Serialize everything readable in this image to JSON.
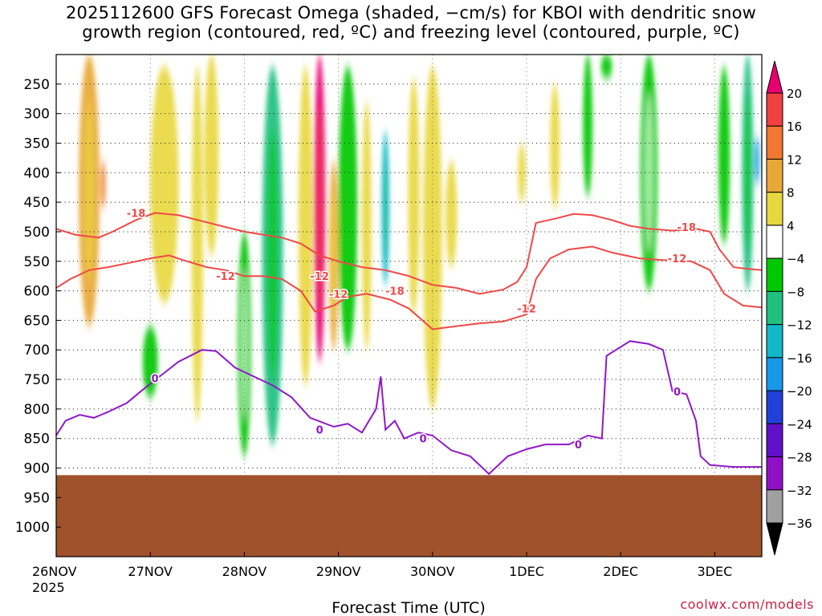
{
  "title": {
    "line1": "2025112600 GFS Forecast Omega (shaded, −cm/s) for KBOI with dendritic snow",
    "line2": "growth region (contoured, red, ºC) and freezing level (contoured, purple, ºC)"
  },
  "credit": "coolwx.com/models",
  "chart_data": {
    "type": "heatmap",
    "xlabel": "Forecast Time (UTC)",
    "x_tick_labels": [
      "26NOV\n2025",
      "27NOV",
      "28NOV",
      "29NOV",
      "30NOV",
      "1DEC",
      "2DEC",
      "3DEC"
    ],
    "x_range_days": [
      0,
      7.5
    ],
    "y_tick_labels": [
      "250",
      "300",
      "350",
      "400",
      "450",
      "500",
      "550",
      "600",
      "650",
      "700",
      "750",
      "800",
      "850",
      "900",
      "950",
      "1000"
    ],
    "y_ticks_hpa": [
      250,
      300,
      350,
      400,
      450,
      500,
      550,
      600,
      650,
      700,
      750,
      800,
      850,
      900,
      950,
      1000
    ],
    "y_range_hpa": [
      200,
      1050
    ],
    "ground_level_hpa": 912,
    "ground_color": "#a0522d",
    "grid": true,
    "colorbar": {
      "tick_labels": [
        "20",
        "16",
        "12",
        "8",
        "4",
        "−4",
        "−8",
        "−12",
        "−16",
        "−20",
        "−24",
        "−28",
        "−32",
        "−36"
      ],
      "bins": [
        {
          "color": "#e8006e",
          "min": 20
        },
        {
          "color": "#f04040",
          "min": 16,
          "max": 20
        },
        {
          "color": "#f07830",
          "min": 12,
          "max": 16
        },
        {
          "color": "#e8a838",
          "min": 8,
          "max": 12
        },
        {
          "color": "#e8d840",
          "min": 4,
          "max": 8
        },
        {
          "color": "#ffffff",
          "min": -4,
          "max": 4
        },
        {
          "color": "#00c800",
          "min": -8,
          "max": -4
        },
        {
          "color": "#20c080",
          "min": -12,
          "max": -8
        },
        {
          "color": "#10b8c8",
          "min": -16,
          "max": -12
        },
        {
          "color": "#1898e8",
          "min": -20,
          "max": -16
        },
        {
          "color": "#2040d8",
          "min": -24,
          "max": -20
        },
        {
          "color": "#6010c8",
          "min": -28,
          "max": -24
        },
        {
          "color": "#9010c8",
          "min": -32,
          "max": -28
        },
        {
          "color": "#a0a0a0",
          "min": -36,
          "max": -32
        },
        {
          "color": "#000000",
          "max": -36
        }
      ]
    },
    "omega_features": [
      {
        "day": 6.3,
        "p_top": 200,
        "p_bot": 600,
        "value": -8,
        "width_days": 0.18
      },
      {
        "day": 3.8,
        "p_top": 240,
        "p_bot": 640,
        "value": 4,
        "width_days": 0.12
      },
      {
        "day": 7.35,
        "p_top": 200,
        "p_bot": 600,
        "value": -10,
        "width_days": 0.12
      },
      {
        "day": 7.1,
        "p_top": 220,
        "p_bot": 520,
        "value": -6,
        "width_days": 0.12
      },
      {
        "day": 5.65,
        "p_top": 200,
        "p_bot": 440,
        "value": -6,
        "width_days": 0.1
      },
      {
        "day": 0.35,
        "p_top": 200,
        "p_bot": 660,
        "value": 8,
        "width_days": 0.22
      },
      {
        "day": 1.15,
        "p_top": 220,
        "p_bot": 620,
        "value": 6,
        "width_days": 0.3
      },
      {
        "day": 1.65,
        "p_top": 200,
        "p_bot": 540,
        "value": 6,
        "width_days": 0.15
      },
      {
        "day": 1.5,
        "p_top": 220,
        "p_bot": 820,
        "value": 5,
        "width_days": 0.12
      },
      {
        "day": 2.3,
        "p_top": 220,
        "p_bot": 860,
        "value": -10,
        "width_days": 0.22
      },
      {
        "day": 2.0,
        "p_top": 500,
        "p_bot": 880,
        "value": -8,
        "width_days": 0.14
      },
      {
        "day": 2.65,
        "p_top": 220,
        "p_bot": 760,
        "value": 5,
        "width_days": 0.15
      },
      {
        "day": 2.8,
        "p_top": 200,
        "p_bot": 720,
        "value": 22,
        "width_days": 0.12
      },
      {
        "day": 2.95,
        "p_top": 380,
        "p_bot": 700,
        "value": 10,
        "width_days": 0.1
      },
      {
        "day": 3.1,
        "p_top": 220,
        "p_bot": 700,
        "value": -6,
        "width_days": 0.2
      },
      {
        "day": 3.3,
        "p_top": 280,
        "p_bot": 700,
        "value": 5,
        "width_days": 0.1
      },
      {
        "day": 4.0,
        "p_top": 220,
        "p_bot": 800,
        "value": 5,
        "width_days": 0.2
      },
      {
        "day": 4.2,
        "p_top": 380,
        "p_bot": 560,
        "value": 6,
        "width_days": 0.12
      },
      {
        "day": 0.5,
        "p_top": 380,
        "p_bot": 460,
        "value": 14,
        "width_days": 0.05
      },
      {
        "day": 5.3,
        "p_top": 250,
        "p_bot": 460,
        "value": 5,
        "width_days": 0.1
      },
      {
        "day": 4.95,
        "p_top": 350,
        "p_bot": 450,
        "value": 6,
        "width_days": 0.08
      },
      {
        "day": 7.45,
        "p_top": 340,
        "p_bot": 420,
        "value": -18,
        "width_days": 0.05
      },
      {
        "day": 3.5,
        "p_top": 330,
        "p_bot": 590,
        "value": -14,
        "width_days": 0.08
      },
      {
        "day": 1.0,
        "p_top": 660,
        "p_bot": 780,
        "value": -6,
        "width_days": 0.16
      },
      {
        "day": 5.85,
        "p_top": 200,
        "p_bot": 240,
        "value": -6,
        "width_days": 0.12
      }
    ],
    "contours": [
      {
        "level": "-18",
        "color": "#f04848",
        "points": [
          [
            0,
            495
          ],
          [
            0.2,
            505
          ],
          [
            0.45,
            510
          ],
          [
            0.6,
            500
          ],
          [
            0.85,
            480
          ],
          [
            1.05,
            468
          ],
          [
            1.3,
            472
          ],
          [
            1.5,
            480
          ],
          [
            1.75,
            490
          ],
          [
            2.0,
            500
          ],
          [
            2.2,
            505
          ],
          [
            2.4,
            510
          ],
          [
            2.6,
            520
          ],
          [
            2.8,
            540
          ],
          [
            3.0,
            550
          ],
          [
            3.25,
            560
          ],
          [
            3.5,
            565
          ],
          [
            3.75,
            575
          ],
          [
            4.0,
            590
          ],
          [
            4.25,
            595
          ],
          [
            4.5,
            605
          ],
          [
            4.75,
            598
          ],
          [
            4.9,
            585
          ],
          [
            5.0,
            560
          ],
          [
            5.1,
            485
          ],
          [
            5.3,
            478
          ],
          [
            5.5,
            470
          ],
          [
            5.7,
            472
          ],
          [
            5.9,
            480
          ],
          [
            6.1,
            490
          ],
          [
            6.3,
            495
          ],
          [
            6.55,
            498
          ],
          [
            6.8,
            495
          ],
          [
            6.95,
            500
          ],
          [
            7.05,
            530
          ],
          [
            7.2,
            560
          ],
          [
            7.35,
            563
          ],
          [
            7.5,
            565
          ]
        ]
      },
      {
        "level": "-12",
        "color": "#f04848",
        "points": [
          [
            0,
            595
          ],
          [
            0.15,
            580
          ],
          [
            0.35,
            565
          ],
          [
            0.55,
            560
          ],
          [
            0.8,
            552
          ],
          [
            1.0,
            545
          ],
          [
            1.2,
            540
          ],
          [
            1.35,
            548
          ],
          [
            1.6,
            560
          ],
          [
            1.8,
            565
          ],
          [
            2.0,
            575
          ],
          [
            2.2,
            575
          ],
          [
            2.4,
            580
          ],
          [
            2.6,
            600
          ],
          [
            2.75,
            635
          ],
          [
            2.95,
            625
          ],
          [
            3.1,
            610
          ],
          [
            3.3,
            605
          ],
          [
            3.55,
            615
          ],
          [
            3.75,
            630
          ],
          [
            4.0,
            665
          ],
          [
            4.25,
            660
          ],
          [
            4.5,
            655
          ],
          [
            4.75,
            652
          ],
          [
            5.0,
            640
          ],
          [
            5.1,
            580
          ],
          [
            5.25,
            545
          ],
          [
            5.45,
            530
          ],
          [
            5.7,
            525
          ],
          [
            5.9,
            535
          ],
          [
            6.2,
            545
          ],
          [
            6.45,
            548
          ],
          [
            6.75,
            550
          ],
          [
            6.95,
            565
          ],
          [
            7.1,
            605
          ],
          [
            7.3,
            625
          ],
          [
            7.5,
            628
          ]
        ]
      },
      {
        "level": "0",
        "color": "#9018c8",
        "points": [
          [
            0,
            845
          ],
          [
            0.1,
            820
          ],
          [
            0.25,
            810
          ],
          [
            0.4,
            815
          ],
          [
            0.55,
            805
          ],
          [
            0.75,
            790
          ],
          [
            0.9,
            770
          ],
          [
            1.1,
            745
          ],
          [
            1.3,
            720
          ],
          [
            1.55,
            700
          ],
          [
            1.7,
            702
          ],
          [
            1.9,
            730
          ],
          [
            2.1,
            745
          ],
          [
            2.3,
            760
          ],
          [
            2.5,
            780
          ],
          [
            2.7,
            815
          ],
          [
            2.95,
            830
          ],
          [
            3.1,
            825
          ],
          [
            3.25,
            840
          ],
          [
            3.4,
            800
          ],
          [
            3.45,
            745
          ],
          [
            3.5,
            835
          ],
          [
            3.6,
            820
          ],
          [
            3.7,
            850
          ],
          [
            3.85,
            840
          ],
          [
            4.0,
            845
          ],
          [
            4.2,
            870
          ],
          [
            4.4,
            880
          ],
          [
            4.6,
            910
          ],
          [
            4.8,
            880
          ],
          [
            5.0,
            868
          ],
          [
            5.2,
            860
          ],
          [
            5.45,
            860
          ],
          [
            5.65,
            845
          ],
          [
            5.8,
            850
          ],
          [
            5.85,
            710
          ],
          [
            6.1,
            685
          ],
          [
            6.3,
            690
          ],
          [
            6.45,
            700
          ],
          [
            6.55,
            770
          ],
          [
            6.7,
            775
          ],
          [
            6.8,
            820
          ],
          [
            6.85,
            880
          ],
          [
            6.95,
            895
          ],
          [
            7.2,
            898
          ],
          [
            7.5,
            898
          ]
        ]
      }
    ],
    "contour_labels": [
      {
        "text": "-18",
        "day": 0.85,
        "p": 468,
        "color": "#f04848"
      },
      {
        "text": "-18",
        "day": 3.6,
        "p": 600,
        "color": "#f04848"
      },
      {
        "text": "-18",
        "day": 6.7,
        "p": 492,
        "color": "#f04848"
      },
      {
        "text": "-12",
        "day": 1.8,
        "p": 575,
        "color": "#f04848"
      },
      {
        "text": "-12",
        "day": 2.8,
        "p": 575,
        "color": "#f04848"
      },
      {
        "text": "-12",
        "day": 3.0,
        "p": 605,
        "color": "#f04848"
      },
      {
        "text": "-12",
        "day": 5.0,
        "p": 630,
        "color": "#f04848"
      },
      {
        "text": "-12",
        "day": 6.6,
        "p": 545,
        "color": "#f04848"
      },
      {
        "text": "0",
        "day": 1.05,
        "p": 748,
        "color": "#9018c8"
      },
      {
        "text": "0",
        "day": 2.8,
        "p": 835,
        "color": "#9018c8"
      },
      {
        "text": "0",
        "day": 3.9,
        "p": 850,
        "color": "#9018c8"
      },
      {
        "text": "0",
        "day": 5.55,
        "p": 860,
        "color": "#9018c8"
      },
      {
        "text": "0",
        "day": 6.6,
        "p": 770,
        "color": "#9018c8"
      }
    ]
  }
}
